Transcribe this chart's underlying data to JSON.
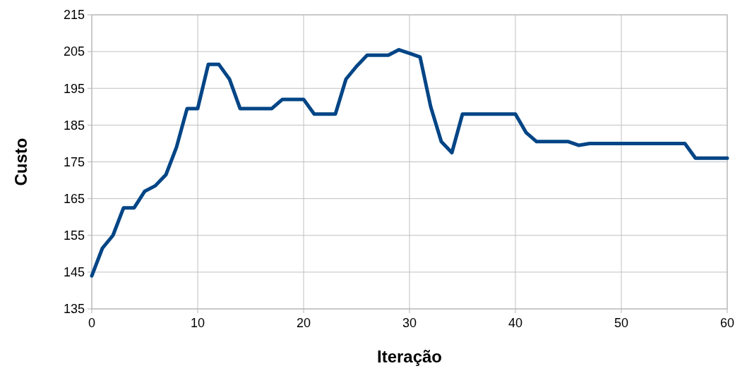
{
  "chart_data": {
    "type": "line",
    "xlabel": "Iteração",
    "ylabel": "Custo",
    "x": [
      0,
      1,
      2,
      3,
      4,
      5,
      6,
      7,
      8,
      9,
      10,
      11,
      12,
      13,
      14,
      15,
      16,
      17,
      18,
      19,
      20,
      21,
      22,
      23,
      24,
      25,
      26,
      27,
      28,
      29,
      30,
      31,
      32,
      33,
      34,
      35,
      36,
      37,
      38,
      39,
      40,
      41,
      42,
      43,
      44,
      45,
      46,
      47,
      48,
      49,
      50,
      51,
      52,
      53,
      54,
      55,
      56,
      57,
      58,
      59,
      60
    ],
    "series": [
      {
        "color": "#004586",
        "values": [
          144,
          151.5,
          155,
          162.5,
          162.5,
          167,
          168.5,
          171.5,
          179,
          189.5,
          189.5,
          201.5,
          201.5,
          197.5,
          189.5,
          189.5,
          189.5,
          189.5,
          192,
          192,
          192,
          188,
          188,
          188,
          197.5,
          201,
          204,
          204,
          204,
          205.5,
          204.5,
          203.5,
          190,
          180.5,
          177.5,
          188,
          188,
          188,
          188,
          188,
          188,
          183,
          180.5,
          180.5,
          180.5,
          180.5,
          179.5,
          180,
          180,
          180,
          180,
          180,
          180,
          180,
          180,
          180,
          180,
          176,
          176,
          176,
          176
        ]
      }
    ],
    "xlim": [
      0,
      60
    ],
    "xticks": [
      0,
      10,
      20,
      30,
      40,
      50,
      60
    ],
    "ylim": [
      135,
      215
    ],
    "yticks": [
      135,
      145,
      155,
      165,
      175,
      185,
      195,
      205,
      215
    ],
    "grid": true,
    "marker": "none",
    "line_style": "solid"
  }
}
